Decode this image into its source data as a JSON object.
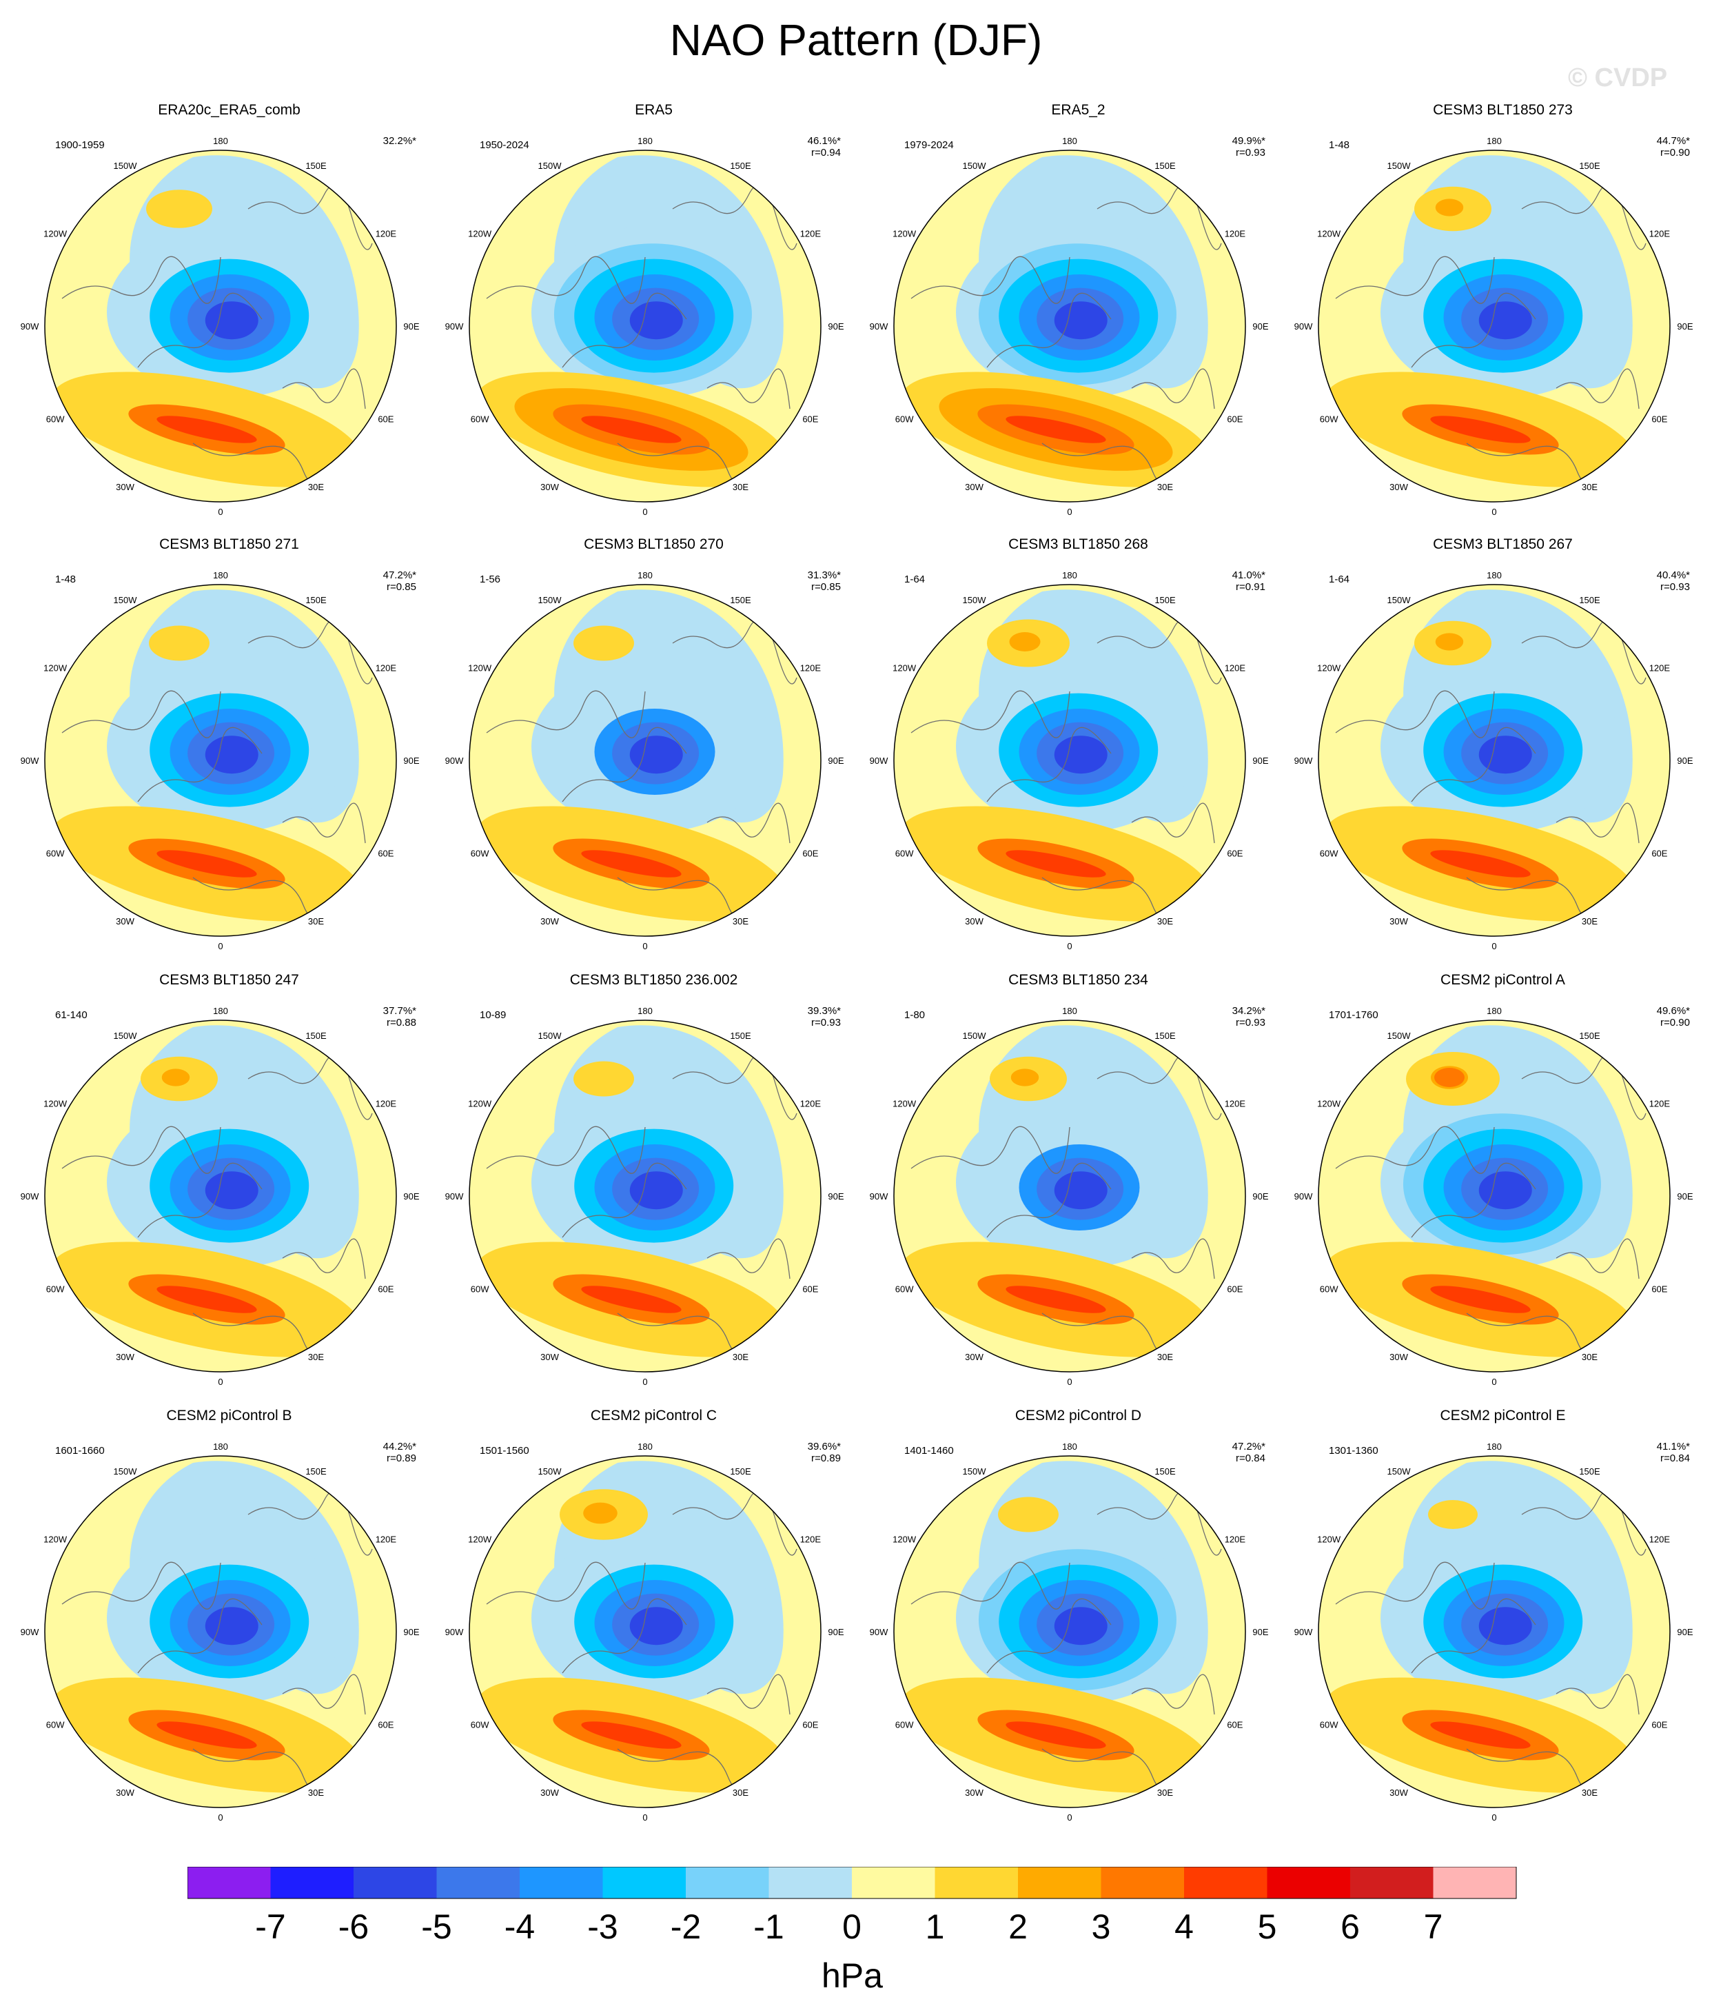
{
  "title": "NAO Pattern (DJF)",
  "watermark": "© CVDP",
  "longitude_labels": [
    "180",
    "150E",
    "120E",
    "90E",
    "60E",
    "30E",
    "0",
    "30W",
    "60W",
    "90W",
    "120W",
    "150W"
  ],
  "panels": [
    {
      "title": "ERA20c_ERA5_comb",
      "years": "1900-1959",
      "pct": "32.2%*",
      "r": "",
      "pos": 0.55,
      "neg": 0.55,
      "pac": 0.35
    },
    {
      "title": "ERA5",
      "years": "1950-2024",
      "pct": "46.1%*",
      "r": "r=0.94",
      "pos": 0.65,
      "neg": 0.75,
      "pac": 0.0
    },
    {
      "title": "ERA5_2",
      "years": "1979-2024",
      "pct": "49.9%*",
      "r": "r=0.93",
      "pos": 0.7,
      "neg": 0.75,
      "pac": 0.0
    },
    {
      "title": "CESM3 BLT1850 273",
      "years": "1-48",
      "pct": "44.7%*",
      "r": "r=0.90",
      "pos": 0.6,
      "neg": 0.6,
      "pac": 0.45
    },
    {
      "title": "CESM3 BLT1850 271",
      "years": "1-48",
      "pct": "47.2%*",
      "r": "r=0.85",
      "pos": 0.6,
      "neg": 0.65,
      "pac": 0.3
    },
    {
      "title": "CESM3 BLT1850 270",
      "years": "1-56",
      "pct": "31.3%*",
      "r": "r=0.85",
      "pos": 0.4,
      "neg": 0.5,
      "pac": 0.3
    },
    {
      "title": "CESM3 BLT1850 268",
      "years": "1-64",
      "pct": "41.0%*",
      "r": "r=0.91",
      "pos": 0.6,
      "neg": 0.55,
      "pac": 0.5
    },
    {
      "title": "CESM3 BLT1850 267",
      "years": "1-64",
      "pct": "40.4%*",
      "r": "r=0.93",
      "pos": 0.6,
      "neg": 0.6,
      "pac": 0.45
    },
    {
      "title": "CESM3 BLT1850 247",
      "years": "61-140",
      "pct": "37.7%*",
      "r": "r=0.88",
      "pos": 0.45,
      "neg": 0.55,
      "pac": 0.45
    },
    {
      "title": "CESM3 BLT1850 236.002",
      "years": "10-89",
      "pct": "39.3%*",
      "r": "r=0.93",
      "pos": 0.55,
      "neg": 0.55,
      "pac": 0.3
    },
    {
      "title": "CESM3 BLT1850 234",
      "years": "1-80",
      "pct": "34.2%*",
      "r": "r=0.93",
      "pos": 0.45,
      "neg": 0.5,
      "pac": 0.45
    },
    {
      "title": "CESM2 piControl A",
      "years": "1701-1760",
      "pct": "49.6%*",
      "r": "r=0.90",
      "pos": 0.5,
      "neg": 0.7,
      "pac": 0.6
    },
    {
      "title": "CESM2 piControl B",
      "years": "1601-1660",
      "pct": "44.2%*",
      "r": "r=0.89",
      "pos": 0.45,
      "neg": 0.65,
      "pac": 0.0
    },
    {
      "title": "CESM2 piControl C",
      "years": "1501-1560",
      "pct": "39.6%*",
      "r": "r=0.89",
      "pos": 0.4,
      "neg": 0.6,
      "pac": 0.55
    },
    {
      "title": "CESM2 piControl D",
      "years": "1401-1460",
      "pct": "47.2%*",
      "r": "r=0.84",
      "pos": 0.45,
      "neg": 0.7,
      "pac": 0.3
    },
    {
      "title": "CESM2 piControl E",
      "years": "1301-1360",
      "pct": "41.1%*",
      "r": "r=0.84",
      "pos": 0.4,
      "neg": 0.6,
      "pac": 0.2
    }
  ],
  "colorbar": {
    "unit": "hPa",
    "ticks": [
      "-7",
      "-6",
      "-5",
      "-4",
      "-3",
      "-2",
      "-1",
      "0",
      "1",
      "2",
      "3",
      "4",
      "5",
      "6",
      "7"
    ],
    "colors": [
      "#8c1ef0",
      "#1e1eff",
      "#2d46e6",
      "#3c78eb",
      "#1e96ff",
      "#00c8ff",
      "#78d2fa",
      "#b4e1f5",
      "#fffaa0",
      "#ffd732",
      "#ffaa00",
      "#ff7800",
      "#ff3c00",
      "#eb0000",
      "#d21e1e",
      "#ffb4b4"
    ]
  }
}
